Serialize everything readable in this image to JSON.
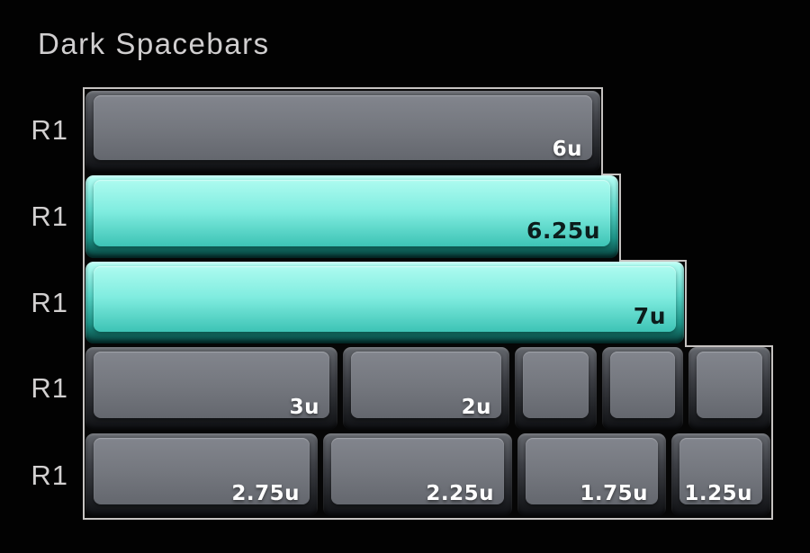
{
  "title": "Dark Spacebars",
  "palette": {
    "background": "#000000",
    "panel_border": "#c6c3c1",
    "key_dark_surface": "#74777e",
    "key_teal_surface": "#7fecdf",
    "label_on_dark": "#ffffff",
    "label_on_teal": "#0c1d1c",
    "title_color": "#d0cecf"
  },
  "rows": [
    {
      "label": "R1",
      "keys": [
        {
          "label": "6u",
          "size_u": 6,
          "color": "dark"
        }
      ]
    },
    {
      "label": "R1",
      "keys": [
        {
          "label": "6.25u",
          "size_u": 6.25,
          "color": "teal"
        }
      ]
    },
    {
      "label": "R1",
      "keys": [
        {
          "label": "7u",
          "size_u": 7,
          "color": "teal"
        }
      ]
    },
    {
      "label": "R1",
      "keys": [
        {
          "label": "3u",
          "size_u": 3,
          "color": "dark"
        },
        {
          "label": "2u",
          "size_u": 2,
          "color": "dark"
        },
        {
          "label": "",
          "size_u": 1,
          "color": "dark"
        },
        {
          "label": "",
          "size_u": 1,
          "color": "dark"
        },
        {
          "label": "",
          "size_u": 1,
          "color": "dark"
        }
      ]
    },
    {
      "label": "R1",
      "keys": [
        {
          "label": "2.75u",
          "size_u": 2.75,
          "color": "dark"
        },
        {
          "label": "2.25u",
          "size_u": 2.25,
          "color": "dark"
        },
        {
          "label": "1.75u",
          "size_u": 1.75,
          "color": "dark"
        },
        {
          "label": "1.25u",
          "size_u": 1.25,
          "color": "dark"
        }
      ]
    }
  ]
}
